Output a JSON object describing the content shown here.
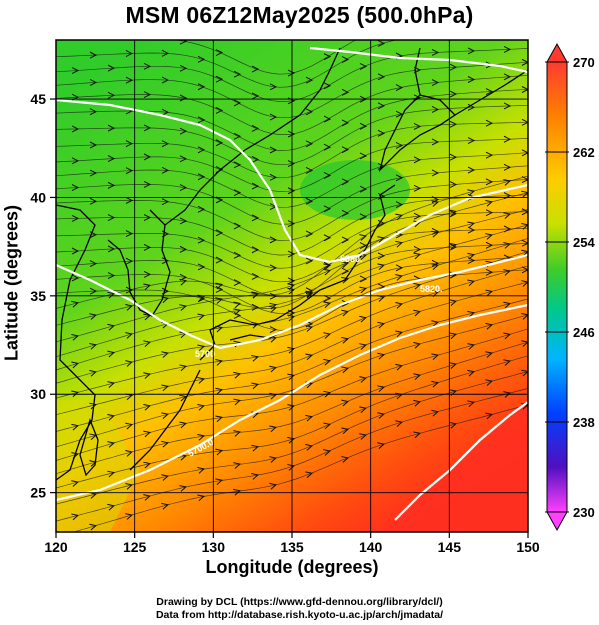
{
  "title": "MSM 06Z12May2025 (500.0hPa)",
  "map": {
    "xlabel": "Longitude (degrees)",
    "ylabel": "Latitude  (degrees)",
    "lon_range": [
      120,
      150
    ],
    "lat_range": [
      23,
      48
    ],
    "x_ticks": [
      "120",
      "125",
      "130",
      "135",
      "140",
      "145",
      "150"
    ],
    "y_ticks": [
      "25",
      "30",
      "35",
      "40",
      "45"
    ],
    "gridlines": true,
    "field": "temperature",
    "vectors": "wind streamlines",
    "contour_labels": [
      "5880.",
      "5700",
      "5700.0",
      "5820."
    ]
  },
  "colorbar": {
    "min": 230,
    "max": 270,
    "tick_labels": [
      "270",
      "262",
      "254",
      "246",
      "238",
      "230"
    ],
    "colors": [
      "#ff3b30",
      "#ff8000",
      "#ffbe00",
      "#e8e000",
      "#90dc00",
      "#36d02b",
      "#00c8a0",
      "#00a8ff",
      "#0040ff",
      "#3010c0",
      "#c000d0",
      "#ff40ff"
    ]
  },
  "credit": {
    "line1": "Drawing by DCL (https://www.gfd-dennou.org/library/dcl/)",
    "line2": "Data from http://database.rish.kyoto-u.ac.jp/arch/jmadata/"
  }
}
